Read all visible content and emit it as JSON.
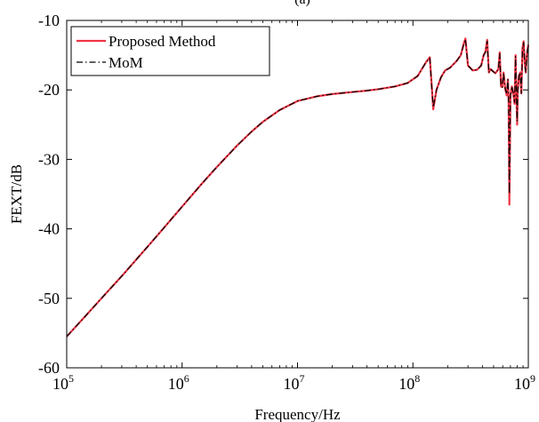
{
  "chart_data": {
    "type": "line",
    "panel_label": "(a)",
    "xlabel": "Frequency/Hz",
    "ylabel": "FEXT/dB",
    "x_scale": "log",
    "xlim": [
      100000,
      1000000000
    ],
    "ylim": [
      -60,
      -10
    ],
    "x_ticks": [
      {
        "base": "10",
        "exp": "5",
        "value": 100000
      },
      {
        "base": "10",
        "exp": "6",
        "value": 1000000
      },
      {
        "base": "10",
        "exp": "7",
        "value": 10000000
      },
      {
        "base": "10",
        "exp": "8",
        "value": 100000000
      },
      {
        "base": "10",
        "exp": "9",
        "value": 1000000000
      }
    ],
    "y_ticks": [
      {
        "label": "-60",
        "value": -60
      },
      {
        "label": "-50",
        "value": -50
      },
      {
        "label": "-40",
        "value": -40
      },
      {
        "label": "-30",
        "value": -30
      },
      {
        "label": "-20",
        "value": -20
      },
      {
        "label": "-10",
        "value": -10
      }
    ],
    "grid": false,
    "legend_position": "top-left",
    "series": [
      {
        "name": "Proposed Method",
        "color": "#ee3344",
        "style": "solid",
        "x": [
          100000,
          150000,
          200000,
          300000,
          500000,
          700000,
          1000000,
          1500000,
          2000000,
          3000000,
          4000000,
          5000000,
          7000000,
          10000000,
          15000000,
          20000000,
          30000000,
          40000000,
          50000000,
          70000000,
          90000000,
          110000000,
          130000000,
          140000000,
          145000000,
          150000000,
          160000000,
          175000000,
          190000000,
          210000000,
          240000000,
          260000000,
          275000000,
          285000000,
          300000000,
          330000000,
          360000000,
          390000000,
          410000000,
          425000000,
          440000000,
          455000000,
          470000000,
          500000000,
          520000000,
          550000000,
          565000000,
          580000000,
          595000000,
          610000000,
          630000000,
          650000000,
          665000000,
          675000000,
          685000000,
          700000000,
          720000000,
          740000000,
          760000000,
          775000000,
          790000000,
          800000000,
          810000000,
          830000000,
          850000000,
          870000000,
          890000000,
          910000000,
          930000000,
          950000000,
          970000000,
          1000000000
        ],
        "y": [
          -55.5,
          -52.3,
          -50.0,
          -46.8,
          -42.6,
          -39.8,
          -36.8,
          -33.4,
          -31.1,
          -28.0,
          -26.0,
          -24.6,
          -22.9,
          -21.6,
          -20.9,
          -20.6,
          -20.3,
          -20.1,
          -19.9,
          -19.5,
          -19.0,
          -18.0,
          -16.0,
          -15.3,
          -19.0,
          -22.8,
          -20.0,
          -18.2,
          -17.2,
          -16.8,
          -15.8,
          -15.0,
          -13.4,
          -12.6,
          -16.5,
          -17.2,
          -17.1,
          -16.5,
          -15.0,
          -14.5,
          -12.8,
          -17.5,
          -17.0,
          -17.4,
          -17.6,
          -17.0,
          -14.6,
          -19.5,
          -19.6,
          -17.5,
          -19.8,
          -20.8,
          -18.5,
          -21.5,
          -36.5,
          -20.8,
          -19.5,
          -20.5,
          -22.0,
          -15.0,
          -21.0,
          -25.0,
          -20.0,
          -18.0,
          -17.5,
          -20.5,
          -14.0,
          -13.0,
          -16.0,
          -17.5,
          -15.0,
          -13.5
        ]
      },
      {
        "name": "MoM",
        "color": "#000000",
        "style": "dashdot",
        "x": [
          100000,
          150000,
          200000,
          300000,
          500000,
          700000,
          1000000,
          1500000,
          2000000,
          3000000,
          4000000,
          5000000,
          7000000,
          10000000,
          15000000,
          20000000,
          30000000,
          40000000,
          50000000,
          70000000,
          90000000,
          110000000,
          130000000,
          140000000,
          145000000,
          150000000,
          160000000,
          175000000,
          190000000,
          210000000,
          240000000,
          260000000,
          275000000,
          285000000,
          300000000,
          330000000,
          360000000,
          390000000,
          410000000,
          425000000,
          440000000,
          455000000,
          470000000,
          500000000,
          520000000,
          550000000,
          565000000,
          580000000,
          595000000,
          610000000,
          630000000,
          650000000,
          665000000,
          675000000,
          685000000,
          700000000,
          720000000,
          740000000,
          760000000,
          775000000,
          790000000,
          800000000,
          810000000,
          830000000,
          850000000,
          870000000,
          890000000,
          910000000,
          930000000,
          950000000,
          970000000,
          1000000000
        ],
        "y": [
          -55.5,
          -52.3,
          -50.0,
          -46.8,
          -42.6,
          -39.8,
          -36.8,
          -33.4,
          -31.1,
          -28.0,
          -26.0,
          -24.6,
          -22.9,
          -21.6,
          -20.9,
          -20.6,
          -20.3,
          -20.1,
          -19.9,
          -19.5,
          -19.0,
          -18.0,
          -16.0,
          -15.4,
          -19.2,
          -22.5,
          -20.0,
          -18.2,
          -17.2,
          -16.8,
          -15.8,
          -15.0,
          -13.5,
          -12.7,
          -16.5,
          -17.2,
          -17.1,
          -16.5,
          -15.0,
          -14.6,
          -13.0,
          -17.5,
          -17.0,
          -17.4,
          -17.6,
          -17.0,
          -14.8,
          -19.5,
          -19.6,
          -17.5,
          -19.8,
          -20.6,
          -18.5,
          -21.5,
          -35.0,
          -20.8,
          -19.5,
          -20.5,
          -21.8,
          -15.2,
          -21.0,
          -24.5,
          -20.0,
          -18.0,
          -17.5,
          -20.5,
          -14.2,
          -13.2,
          -16.0,
          -17.5,
          -15.0,
          -13.6
        ]
      }
    ]
  }
}
